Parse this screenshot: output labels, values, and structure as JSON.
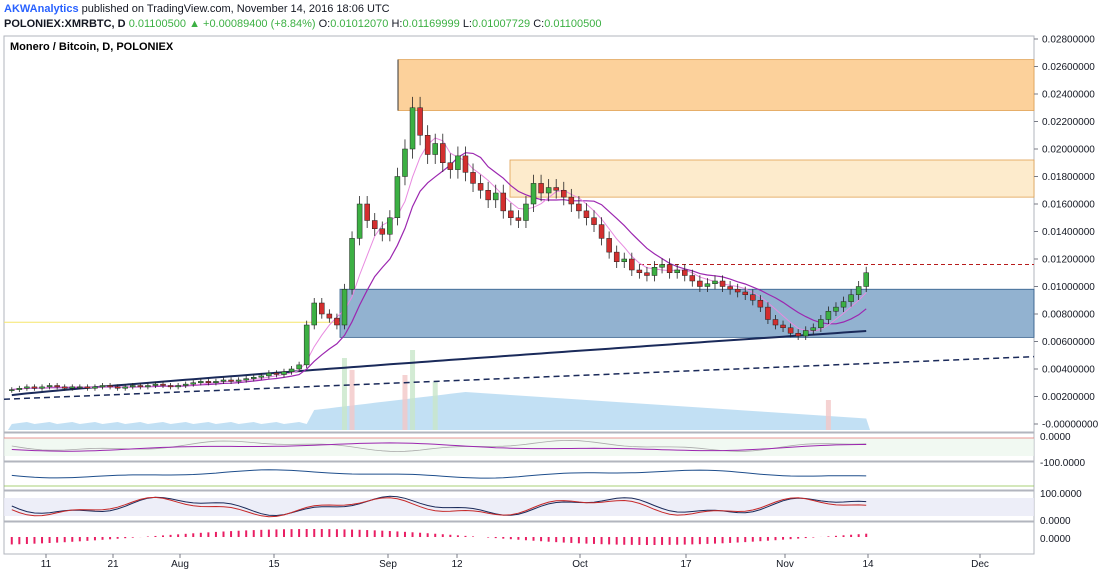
{
  "header": {
    "author": "AKWAnalytics",
    "published": "published on TradingView.com, November 14, 2016 18:06 UTC",
    "symbol": "POLONIEX:XMRBTC, D",
    "last": "0.01100500",
    "change": "+0.00089400 (+8.84%)",
    "o_label": "O:",
    "o": "0.01012070",
    "h_label": "H:",
    "h": "0.01169999",
    "l_label": "L:",
    "l": "0.01007729",
    "c_label": "C:",
    "c": "0.01100500"
  },
  "colors": {
    "up": "#3cb043",
    "down": "#d32f2f",
    "zone_orange": "#fbc98a",
    "zone_light": "#fde8c3",
    "zone_blue": "#4a7fb0",
    "ema_dark": "#1a2a5a",
    "ma_violet": "#9c27b0",
    "ma_pink": "#e88ae0",
    "vol_area": "#a8d3f0"
  },
  "chart_data": {
    "type": "candlestick",
    "title": "Monero / Bitcoin, D, POLONIEX",
    "x_labels": [
      "11",
      "21",
      "Aug",
      "15",
      "Sep",
      "12",
      "Oct",
      "17",
      "Nov",
      "14",
      "Dec"
    ],
    "y_ticks": [
      "0.02800000",
      "0.02600000",
      "0.02400000",
      "0.02200000",
      "0.02000000",
      "0.01800000",
      "0.01600000",
      "0.01400000",
      "0.01200000",
      "0.01000000",
      "0.00800000",
      "0.00600000",
      "0.00400000",
      "0.00200000",
      "-0.00000000"
    ],
    "ylim": [
      0,
      0.028
    ],
    "zones": [
      {
        "from": 0.0228,
        "to": 0.0265,
        "kind": "orange"
      },
      {
        "from": 0.0165,
        "to": 0.0192,
        "kind": "light"
      },
      {
        "from": 0.0063,
        "to": 0.0098,
        "kind": "blue"
      }
    ],
    "resistance": 0.0116,
    "closes": [
      0.0025,
      0.0026,
      0.0027,
      0.0026,
      0.0027,
      0.0028,
      0.0027,
      0.0026,
      0.0027,
      0.0027,
      0.0026,
      0.0027,
      0.0028,
      0.0027,
      0.0026,
      0.0027,
      0.0028,
      0.0027,
      0.0028,
      0.0029,
      0.0028,
      0.0027,
      0.0028,
      0.0029,
      0.003,
      0.0031,
      0.003,
      0.0031,
      0.0032,
      0.0031,
      0.0032,
      0.0033,
      0.0034,
      0.0035,
      0.0037,
      0.0036,
      0.0038,
      0.004,
      0.0043,
      0.0072,
      0.0088,
      0.008,
      0.0077,
      0.0072,
      0.0098,
      0.0135,
      0.016,
      0.0148,
      0.0142,
      0.0138,
      0.015,
      0.018,
      0.02,
      0.023,
      0.021,
      0.0196,
      0.0204,
      0.019,
      0.0185,
      0.0195,
      0.0183,
      0.0175,
      0.017,
      0.0163,
      0.0168,
      0.0155,
      0.015,
      0.0148,
      0.016,
      0.0175,
      0.0168,
      0.0172,
      0.017,
      0.0165,
      0.016,
      0.0155,
      0.015,
      0.0145,
      0.0135,
      0.0125,
      0.0118,
      0.012,
      0.0112,
      0.011,
      0.0108,
      0.0114,
      0.0116,
      0.011,
      0.0112,
      0.0108,
      0.0104,
      0.01,
      0.0102,
      0.0104,
      0.01,
      0.0098,
      0.0096,
      0.0094,
      0.009,
      0.0085,
      0.0076,
      0.0072,
      0.007,
      0.0066,
      0.0064,
      0.0068,
      0.007,
      0.0076,
      0.0082,
      0.0085,
      0.0089,
      0.0094,
      0.01,
      0.011
    ]
  },
  "oscillators": {
    "rsi_label": "0.0000",
    "macd_label": "-100.0000",
    "stoch_label": "100.0000",
    "stoch_label2": "0.0000",
    "histo_label": "0.0000"
  }
}
